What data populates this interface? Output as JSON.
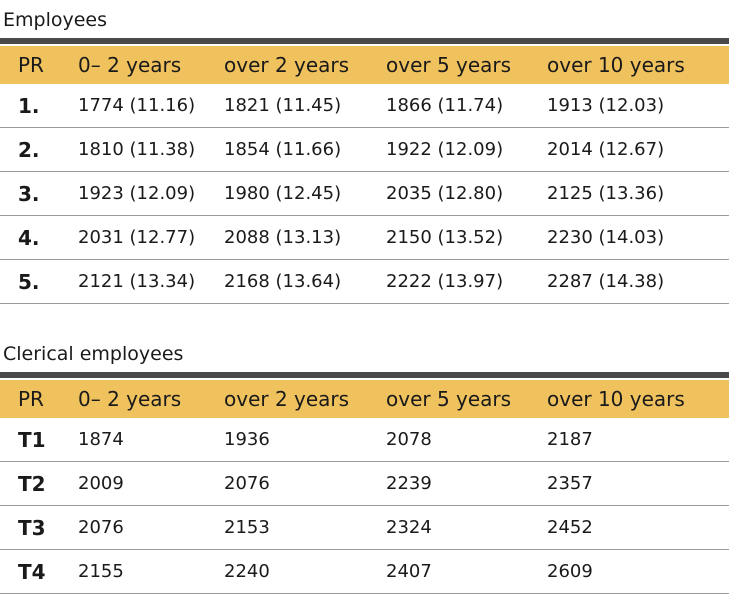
{
  "tables": [
    {
      "title": "Employees",
      "headers": [
        "PR",
        "0– 2 years",
        "over 2 years",
        "over 5 years",
        "over 10 years"
      ],
      "rows": [
        [
          "1.",
          "1774 (11.16)",
          "1821 (11.45)",
          "1866 (11.74)",
          "1913 (12.03)"
        ],
        [
          "2.",
          "1810 (11.38)",
          "1854 (11.66)",
          "1922 (12.09)",
          "2014 (12.67)"
        ],
        [
          "3.",
          "1923 (12.09)",
          "1980 (12.45)",
          "2035 (12.80)",
          "2125 (13.36)"
        ],
        [
          "4.",
          "2031 (12.77)",
          "2088 (13.13)",
          "2150 (13.52)",
          "2230 (14.03)"
        ],
        [
          "5.",
          "2121 (13.34)",
          "2168 (13.64)",
          "2222 (13.97)",
          "2287 (14.38)"
        ]
      ]
    },
    {
      "title": "Clerical employees",
      "headers": [
        "PR",
        "0– 2 years",
        "over 2 years",
        "over 5 years",
        "over 10 years"
      ],
      "rows": [
        [
          "T1",
          "1874",
          "1936",
          "2078",
          "2187"
        ],
        [
          "T2",
          "2009",
          "2076",
          "2239",
          "2357"
        ],
        [
          "T3",
          "2076",
          "2153",
          "2324",
          "2452"
        ],
        [
          "T4",
          "2155",
          "2240",
          "2407",
          "2609"
        ]
      ]
    }
  ],
  "colors": {
    "header_bg": "#f0c25e",
    "rule": "#4a4a4a",
    "row_line": "#9a9a9a"
  }
}
